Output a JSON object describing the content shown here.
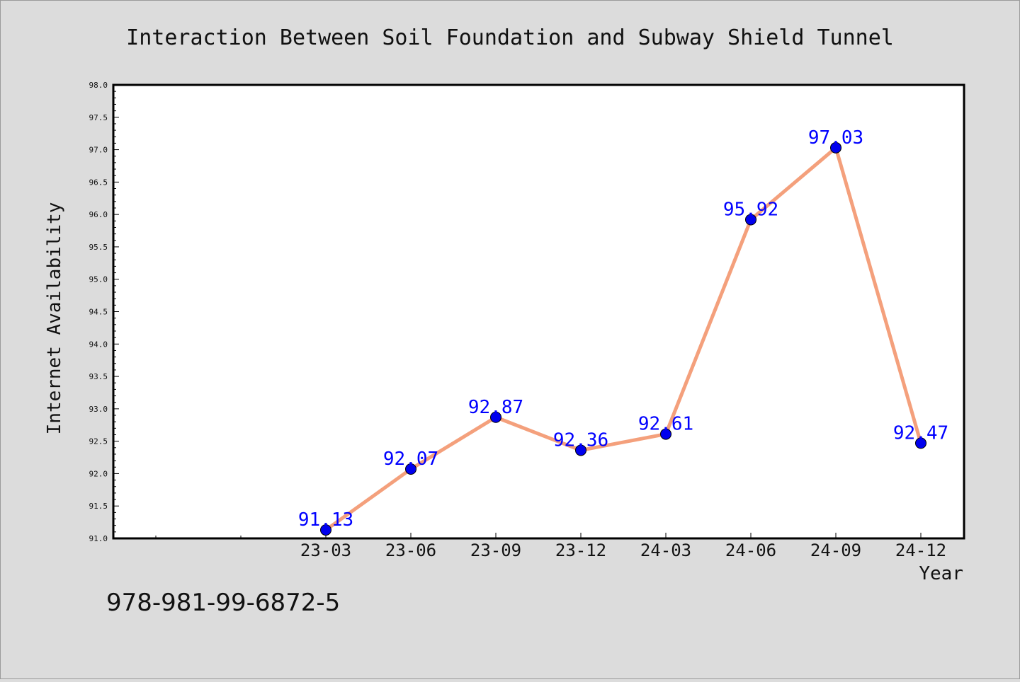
{
  "chart_data": {
    "type": "line",
    "title": "Interaction Between Soil Foundation and Subway Shield Tunnel",
    "xlabel": "Year",
    "ylabel": "Internet Availability",
    "categories": [
      "23-03",
      "23-06",
      "23-09",
      "23-12",
      "24-03",
      "24-06",
      "24-09",
      "24-12"
    ],
    "values": [
      91.13,
      92.07,
      92.87,
      92.36,
      92.61,
      95.92,
      97.03,
      92.47
    ],
    "data_labels": [
      "91.13",
      "92.07",
      "92.87",
      "92.36",
      "92.61",
      "95.92",
      "97.03",
      "92.47"
    ],
    "ylim": [
      91.0,
      98.0
    ],
    "yticks": [
      "91.0",
      "91.5",
      "92.0",
      "92.5",
      "93.0",
      "93.5",
      "94.0",
      "94.5",
      "95.0",
      "95.5",
      "96.0",
      "96.5",
      "97.0",
      "97.5",
      "98.0"
    ],
    "line_color": "#f4a07c",
    "marker_color": "#0000ee",
    "label_color": "#0000ff",
    "grid": false,
    "legend": "none"
  },
  "footer": {
    "isbn": "978-981-99-6872-5"
  }
}
